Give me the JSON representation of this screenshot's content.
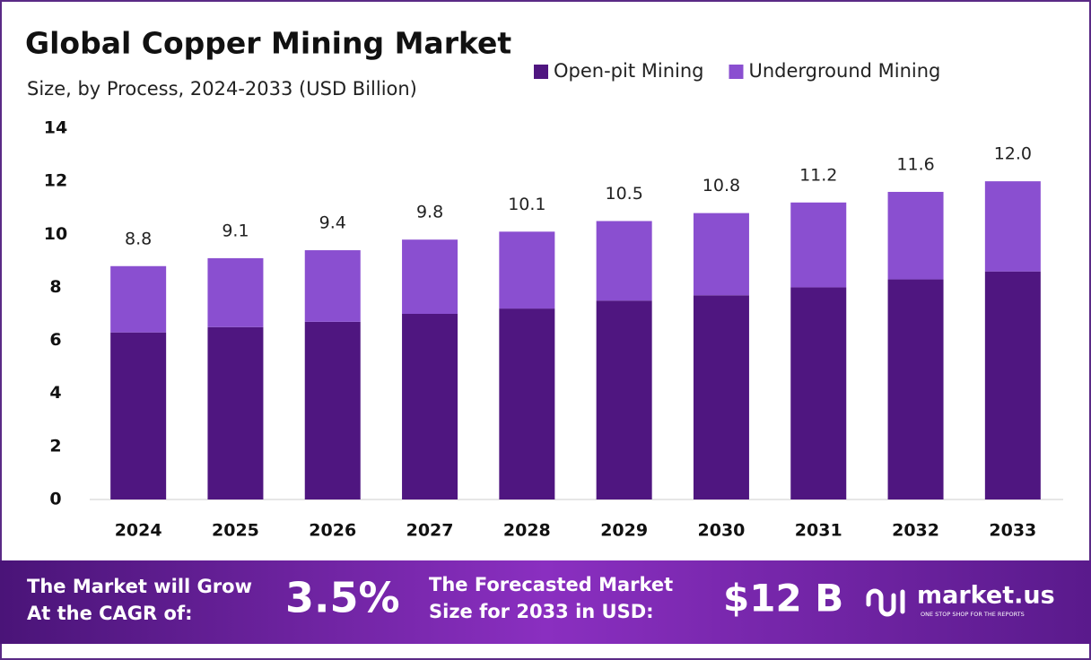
{
  "chart_data": {
    "type": "stacked_bar",
    "title": "Global Copper Mining Market",
    "subtitle": "Size, by Process, 2024-2033 (USD Billion)",
    "categories": [
      "2024",
      "2025",
      "2026",
      "2027",
      "2028",
      "2029",
      "2030",
      "2031",
      "2032",
      "2033"
    ],
    "series": [
      {
        "name": "Open-pit Mining",
        "color": "#4f1680",
        "values": [
          6.3,
          6.5,
          6.7,
          7.0,
          7.2,
          7.5,
          7.7,
          8.0,
          8.3,
          8.6
        ]
      },
      {
        "name": "Underground Mining",
        "color": "#8a4fd0",
        "values": [
          2.5,
          2.6,
          2.7,
          2.8,
          2.9,
          3.0,
          3.1,
          3.2,
          3.3,
          3.4
        ]
      }
    ],
    "totals": {
      "values": [
        8.8,
        9.1,
        9.4,
        9.8,
        10.1,
        10.5,
        10.8,
        11.2,
        11.6,
        12
      ],
      "value_labels": [
        "8.8",
        "9.1",
        "9.4",
        "9.8",
        "10.1",
        "10.5",
        "10.8",
        "11.2",
        "11.6",
        "12.0"
      ]
    },
    "ylim": [
      0,
      14
    ],
    "yticks": [
      0,
      2,
      4,
      6,
      8,
      10,
      12,
      14
    ],
    "grid": false,
    "legend": "top-right"
  },
  "footer": {
    "cagr_text": [
      "The Market will Grow",
      "At the CAGR of:"
    ],
    "cagr_value": "3.5%",
    "forecast_text": [
      "The Forecasted Market",
      "Size for 2033 in USD:"
    ],
    "forecast_value": "$12 B",
    "brand": "market.us",
    "tagline": "ONE STOP SHOP FOR THE REPORTS"
  }
}
